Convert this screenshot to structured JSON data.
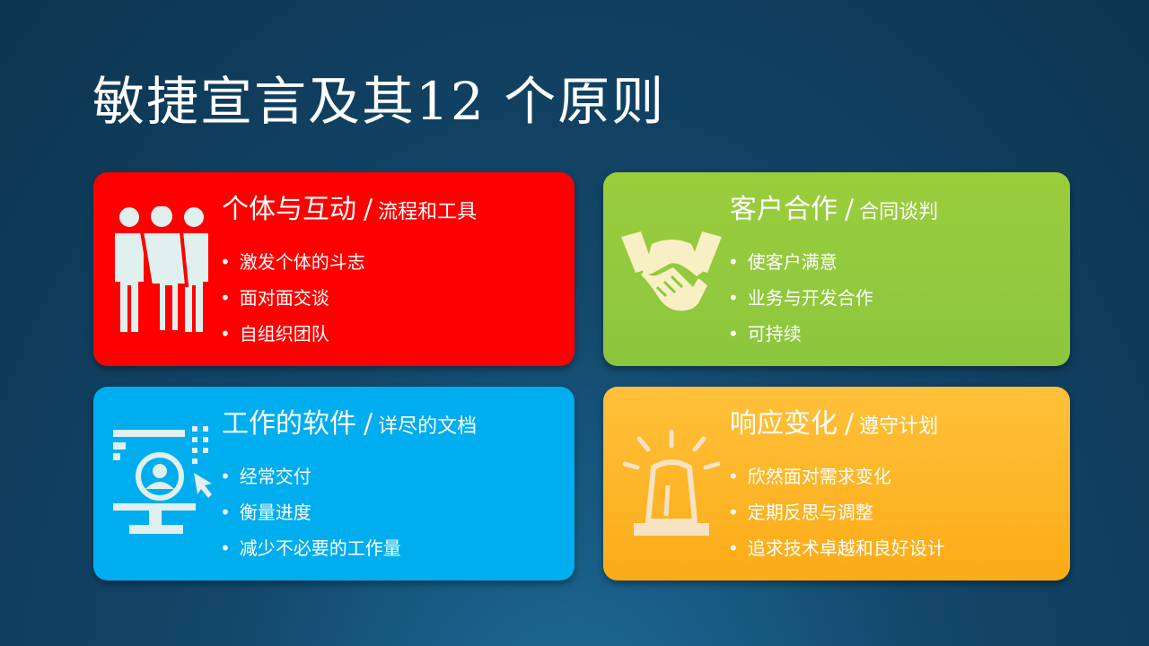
{
  "title": "敏捷宣言及其12 个原则",
  "cards": [
    {
      "heading": "个体与互动",
      "separator": "/",
      "contrast": "流程和工具",
      "bullets": [
        "激发个体的斗志",
        "面对面交谈",
        "自组织团队"
      ],
      "icon": "people-icon",
      "color": "#fe0000"
    },
    {
      "heading": "客户合作",
      "separator": "/",
      "contrast": "合同谈判",
      "bullets": [
        "使客户满意",
        "业务与开发合作",
        "可持续"
      ],
      "icon": "handshake-icon",
      "color": "#8cc63f"
    },
    {
      "heading": "工作的软件",
      "separator": "/",
      "contrast": "详尽的文档",
      "bullets": [
        "经常交付",
        "衡量进度",
        "减少不必要的工作量"
      ],
      "icon": "monitor-user-icon",
      "color": "#00adee"
    },
    {
      "heading": "响应变化",
      "separator": "/",
      "contrast": "遵守计划",
      "bullets": [
        "欣然面对需求变化",
        "定期反思与调整",
        "追求技术卓越和良好设计"
      ],
      "icon": "alarm-light-icon",
      "color": "#fbab18"
    }
  ]
}
